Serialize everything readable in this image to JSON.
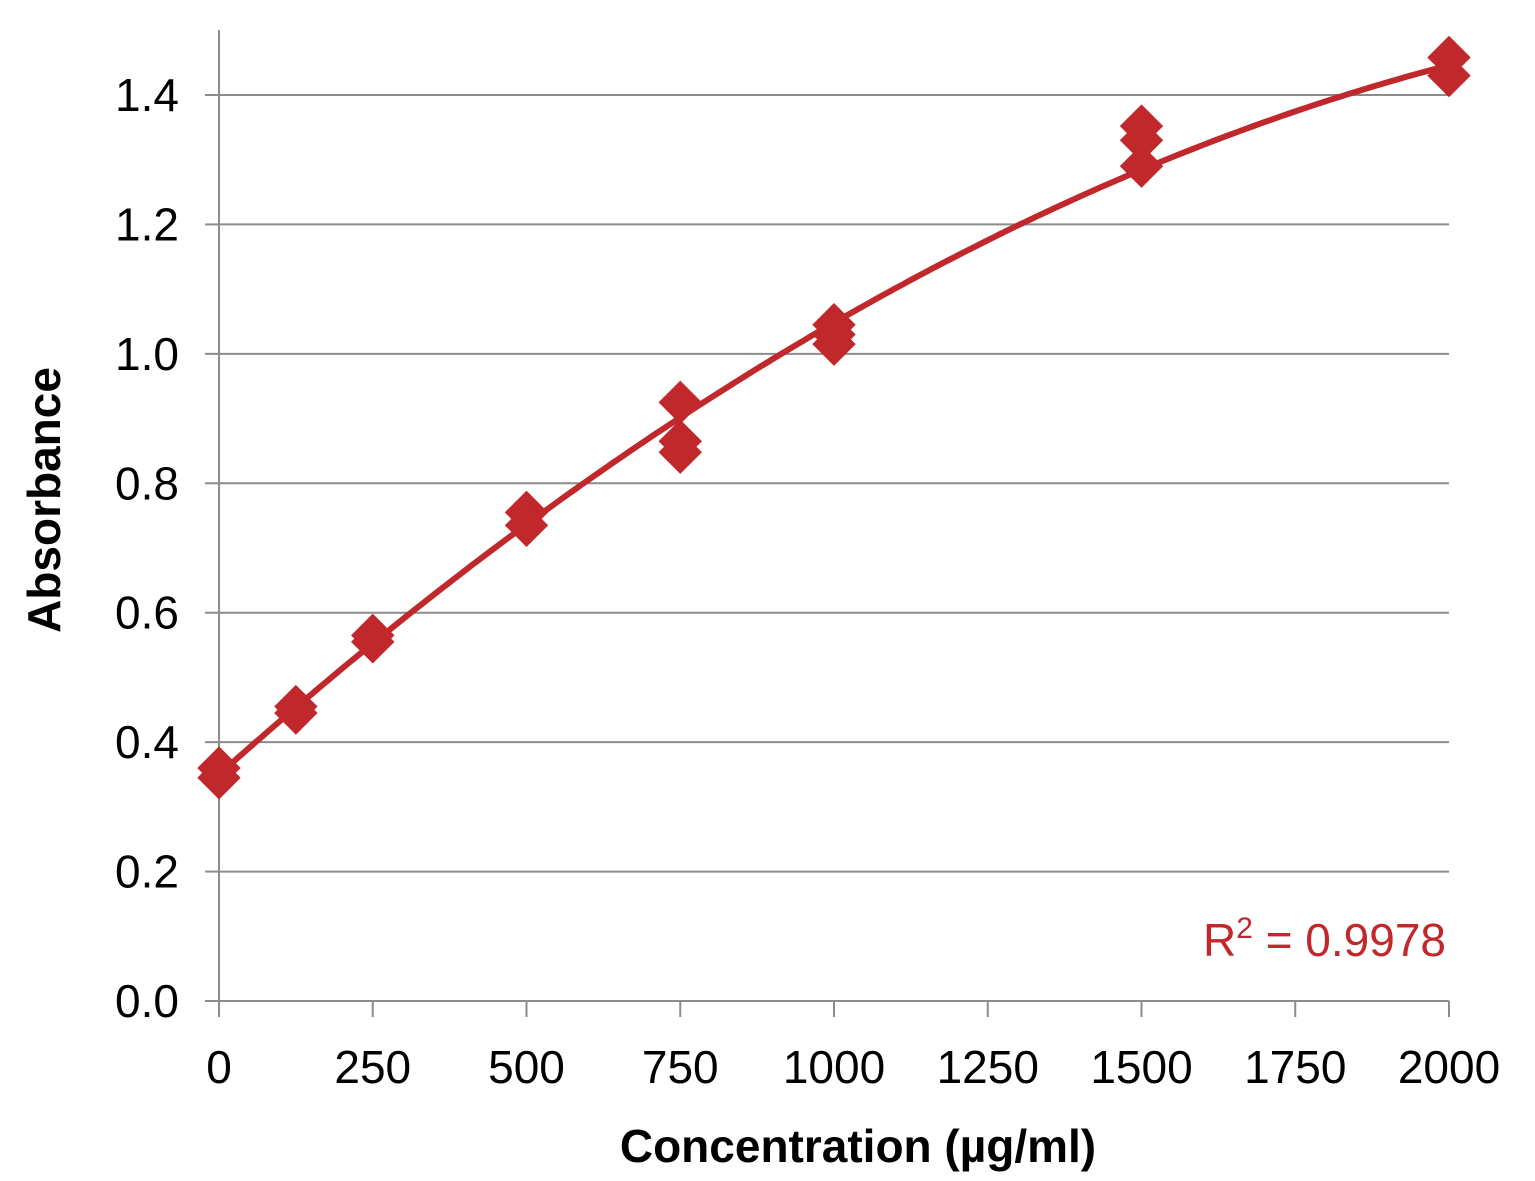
{
  "chart_data": {
    "type": "scatter",
    "xlabel": "Concentration (µg/ml)",
    "ylabel": "Absorbance",
    "xlim": [
      0,
      2000
    ],
    "ylim": [
      0,
      1.5
    ],
    "x_ticks": [
      0,
      250,
      500,
      750,
      1000,
      1250,
      1500,
      1750,
      2000
    ],
    "x_tick_labels": [
      "0",
      "250",
      "500",
      "750",
      "1000",
      "1250",
      "1500",
      "1750",
      "2000"
    ],
    "y_ticks": [
      0,
      0.2,
      0.4,
      0.6,
      0.8,
      1.0,
      1.2,
      1.4
    ],
    "y_tick_labels": [
      "0.0",
      "0.2",
      "0.4",
      "0.6",
      "0.8",
      "1.0",
      "1.2",
      "1.4"
    ],
    "grid": "horizontal",
    "marker": "diamond",
    "points": [
      {
        "x": 0,
        "y": 0.36
      },
      {
        "x": 0,
        "y": 0.345
      },
      {
        "x": 125,
        "y": 0.455
      },
      {
        "x": 125,
        "y": 0.445
      },
      {
        "x": 250,
        "y": 0.565
      },
      {
        "x": 250,
        "y": 0.555
      },
      {
        "x": 500,
        "y": 0.755
      },
      {
        "x": 500,
        "y": 0.735
      },
      {
        "x": 750,
        "y": 0.925
      },
      {
        "x": 750,
        "y": 0.865
      },
      {
        "x": 750,
        "y": 0.848
      },
      {
        "x": 1000,
        "y": 1.045
      },
      {
        "x": 1000,
        "y": 1.03
      },
      {
        "x": 1000,
        "y": 1.015
      },
      {
        "x": 1500,
        "y": 1.352
      },
      {
        "x": 1500,
        "y": 1.33
      },
      {
        "x": 1500,
        "y": 1.29
      },
      {
        "x": 2000,
        "y": 1.458
      },
      {
        "x": 2000,
        "y": 1.43
      }
    ],
    "trendline": {
      "type": "polynomial",
      "coefficients": [
        0.35,
        0.000848,
        -1.5e-07
      ],
      "r_squared_label": "R² = 0.9978"
    },
    "colors": {
      "series": "#c0282b",
      "grid": "#8c8c8c",
      "axis": "#8c8c8c",
      "text": "#000000"
    }
  }
}
